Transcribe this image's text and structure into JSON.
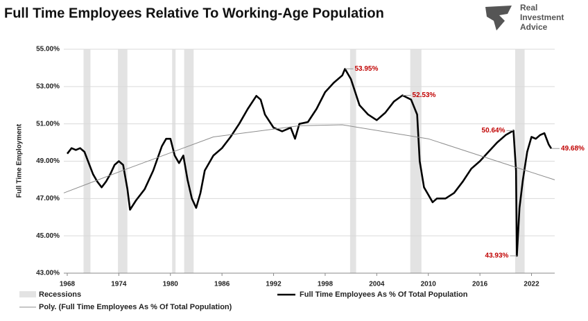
{
  "logo": [
    "Real",
    "Investment",
    "Advice"
  ],
  "chart_data": {
    "type": "line",
    "title": "Full Time Employees Relative To Working-Age Population",
    "y_label": "Full Time Employment",
    "xlim": [
      1967.6,
      2024.7
    ],
    "xticks": [
      1968,
      1974,
      1980,
      1986,
      1992,
      1998,
      2004,
      2010,
      2016,
      2022
    ],
    "ylim": [
      43,
      55
    ],
    "yticks": [
      {
        "value": 43,
        "label": "43.00%"
      },
      {
        "value": 45,
        "label": "45.00%"
      },
      {
        "value": 47,
        "label": "47.00%"
      },
      {
        "value": 49,
        "label": "49.00%"
      },
      {
        "value": 51,
        "label": "51.00%"
      },
      {
        "value": 53,
        "label": "53.00%"
      },
      {
        "value": 55,
        "label": "55.00%"
      }
    ],
    "grid": true,
    "recessions": {
      "name": "Recessions",
      "color": "#e3e3e3",
      "spans": [
        [
          1969.9,
          1970.7
        ],
        [
          1973.9,
          1975.0
        ],
        [
          1980.2,
          1980.6
        ],
        [
          1981.6,
          1982.7
        ],
        [
          2000.9,
          2001.6
        ],
        [
          2007.9,
          2009.2
        ],
        [
          2020.1,
          2021.2
        ]
      ]
    },
    "series": [
      {
        "name": "Full Time Employees As % Of Total Population",
        "color": "#000000",
        "x": [
          1968,
          1968.5,
          1969,
          1969.5,
          1970,
          1970.5,
          1971,
          1971.5,
          1972,
          1972.5,
          1973,
          1973.5,
          1974,
          1974.5,
          1975,
          1975.3,
          1976,
          1977,
          1978,
          1979,
          1979.5,
          1980,
          1980.5,
          1981,
          1981.5,
          1982,
          1982.5,
          1983,
          1983.5,
          1984,
          1985,
          1986,
          1987,
          1988,
          1989,
          1990,
          1990.5,
          1991,
          1992,
          1993,
          1994,
          1994.5,
          1995,
          1996,
          1997,
          1998,
          1999,
          2000,
          2000.3,
          2001,
          2002,
          2003,
          2004,
          2005,
          2006,
          2007,
          2008,
          2008.7,
          2009,
          2009.5,
          2010,
          2010.5,
          2011,
          2012,
          2013,
          2014,
          2015,
          2016,
          2017,
          2018,
          2019,
          2019.9,
          2020.2,
          2020.3,
          2020.6,
          2021,
          2021.5,
          2022,
          2022.5,
          2023,
          2023.5,
          2024,
          2024.3
        ],
        "values": [
          49.4,
          49.7,
          49.6,
          49.7,
          49.5,
          48.9,
          48.3,
          47.9,
          47.6,
          47.9,
          48.3,
          48.8,
          49.0,
          48.8,
          47.5,
          46.4,
          46.9,
          47.5,
          48.5,
          49.8,
          50.2,
          50.2,
          49.3,
          48.9,
          49.3,
          48.0,
          47.0,
          46.5,
          47.3,
          48.5,
          49.3,
          49.7,
          50.3,
          51.0,
          51.8,
          52.5,
          52.3,
          51.5,
          50.8,
          50.6,
          50.8,
          50.2,
          51.0,
          51.1,
          51.8,
          52.7,
          53.2,
          53.6,
          53.95,
          53.4,
          52.0,
          51.5,
          51.2,
          51.6,
          52.2,
          52.53,
          52.3,
          51.5,
          49.0,
          47.6,
          47.2,
          46.8,
          47.0,
          47.0,
          47.3,
          47.9,
          48.6,
          49.0,
          49.5,
          50.0,
          50.4,
          50.64,
          48.5,
          43.93,
          46.5,
          48.0,
          49.5,
          50.3,
          50.2,
          50.4,
          50.5,
          49.9,
          49.68
        ]
      },
      {
        "name": "Poly. (Full Time Employees As % Of Total Population)",
        "color": "#8c8c8c",
        "x": [
          1967.6,
          1975,
          1985,
          1995,
          2000,
          2010,
          2018,
          2024.7
        ],
        "values": [
          47.3,
          48.6,
          50.3,
          50.9,
          50.95,
          50.2,
          49.0,
          48.0
        ]
      }
    ],
    "annotations": [
      {
        "x": 2000.3,
        "y": 53.95,
        "label": "53.95%"
      },
      {
        "x": 2007,
        "y": 52.53,
        "label": "52.53%"
      },
      {
        "x": 2019.9,
        "y": 50.64,
        "label": "50.64%"
      },
      {
        "x": 2020.3,
        "y": 43.93,
        "label": "43.93%"
      },
      {
        "x": 2024.3,
        "y": 49.68,
        "label": "49.68%"
      }
    ]
  }
}
